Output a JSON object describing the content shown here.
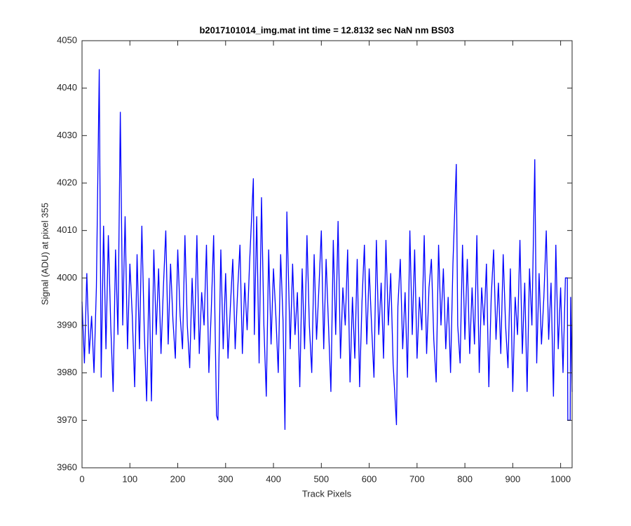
{
  "chart_data": {
    "type": "line",
    "title": "b2017101014_img.mat int time = 12.8132 sec  NaN nm BS03",
    "x_label": "Track Pixels",
    "y_label": "Signal (ADU) at pixel 355",
    "xlim": [
      0,
      1024
    ],
    "ylim": [
      3960,
      4050
    ],
    "xticks": [
      0,
      100,
      200,
      300,
      400,
      500,
      600,
      700,
      800,
      900,
      1000
    ],
    "yticks": [
      3960,
      3970,
      3980,
      3990,
      4000,
      4010,
      4020,
      4030,
      4040,
      4050
    ],
    "grid": false,
    "x": [
      0,
      5,
      10,
      15,
      20,
      25,
      30,
      36,
      40,
      45,
      50,
      55,
      60,
      65,
      70,
      75,
      80,
      85,
      90,
      95,
      100,
      105,
      110,
      115,
      120,
      125,
      130,
      135,
      140,
      145,
      150,
      155,
      160,
      165,
      170,
      175,
      180,
      185,
      190,
      195,
      200,
      205,
      210,
      215,
      220,
      225,
      230,
      235,
      240,
      245,
      250,
      255,
      260,
      265,
      270,
      275,
      281,
      284,
      290,
      295,
      300,
      305,
      310,
      315,
      320,
      325,
      330,
      335,
      340,
      345,
      350,
      358,
      360,
      365,
      370,
      375,
      380,
      385,
      390,
      395,
      400,
      405,
      410,
      415,
      420,
      424,
      428,
      435,
      440,
      445,
      450,
      455,
      460,
      465,
      470,
      475,
      480,
      485,
      490,
      495,
      500,
      505,
      510,
      515,
      520,
      525,
      530,
      535,
      540,
      545,
      550,
      555,
      560,
      565,
      570,
      575,
      580,
      585,
      590,
      595,
      600,
      605,
      610,
      615,
      620,
      625,
      630,
      635,
      640,
      645,
      650,
      657,
      660,
      665,
      670,
      675,
      680,
      685,
      690,
      695,
      700,
      705,
      710,
      715,
      720,
      725,
      730,
      735,
      740,
      745,
      750,
      755,
      760,
      765,
      770,
      775,
      782,
      785,
      790,
      795,
      800,
      805,
      810,
      815,
      820,
      825,
      830,
      835,
      840,
      845,
      850,
      855,
      860,
      865,
      870,
      875,
      880,
      885,
      890,
      895,
      900,
      905,
      910,
      915,
      920,
      925,
      930,
      935,
      940,
      946,
      950,
      955,
      960,
      965,
      970,
      975,
      980,
      985,
      990,
      995,
      1000,
      1005,
      1010,
      1014,
      1015,
      1020,
      1021,
      1024
    ],
    "series": [
      {
        "name": "Signal",
        "color": "#0000ff",
        "values": [
          3995,
          3982,
          4001,
          3984,
          3992,
          3980,
          3998,
          4044,
          3979,
          4011,
          3985,
          4009,
          3990,
          3976,
          4006,
          3988,
          4035,
          3990,
          4013,
          3985,
          4003,
          3992,
          3977,
          4005,
          3985,
          4011,
          3989,
          3974,
          4000,
          3974,
          4006,
          3988,
          4002,
          3984,
          3998,
          4010,
          3986,
          4003,
          3991,
          3983,
          4006,
          3992,
          3985,
          4009,
          3990,
          3981,
          4000,
          3987,
          4009,
          3984,
          3997,
          3990,
          4007,
          3980,
          3993,
          4009,
          3971,
          3970,
          4006,
          3985,
          4001,
          3983,
          3994,
          4004,
          3985,
          3997,
          4007,
          3984,
          3999,
          3989,
          4003,
          4021,
          3988,
          4013,
          3982,
          4017,
          3990,
          3975,
          4006,
          3986,
          4002,
          3992,
          3980,
          4005,
          3991,
          3968,
          4014,
          3985,
          4003,
          3988,
          3997,
          3977,
          4002,
          3985,
          4009,
          3990,
          3980,
          4005,
          3987,
          3998,
          4010,
          3985,
          4004,
          3990,
          3976,
          4008,
          3988,
          4012,
          3983,
          3998,
          3990,
          4006,
          3978,
          3996,
          3983,
          4004,
          3977,
          3995,
          4007,
          3986,
          4002,
          3990,
          3979,
          4008,
          3988,
          3999,
          3983,
          4008,
          3990,
          4001,
          3982,
          3969,
          3994,
          4004,
          3985,
          3997,
          3979,
          4010,
          3988,
          4006,
          3983,
          3996,
          3989,
          4009,
          3984,
          3998,
          4004,
          3987,
          3978,
          4007,
          3990,
          4002,
          3985,
          3996,
          3980,
          4003,
          4024,
          3990,
          3982,
          4007,
          3987,
          4004,
          3984,
          3998,
          3986,
          4009,
          3980,
          3998,
          3990,
          4003,
          3977,
          3996,
          4006,
          3987,
          3999,
          3984,
          4005,
          3990,
          3981,
          4002,
          3976,
          3996,
          3988,
          4008,
          3984,
          3999,
          3976,
          4002,
          3990,
          4025,
          3982,
          4001,
          3986,
          3996,
          4010,
          3987,
          3999,
          3975,
          4007,
          3985,
          3998,
          3980,
          4000,
          4000,
          3970,
          3970,
          3996,
          3976
        ]
      }
    ]
  }
}
